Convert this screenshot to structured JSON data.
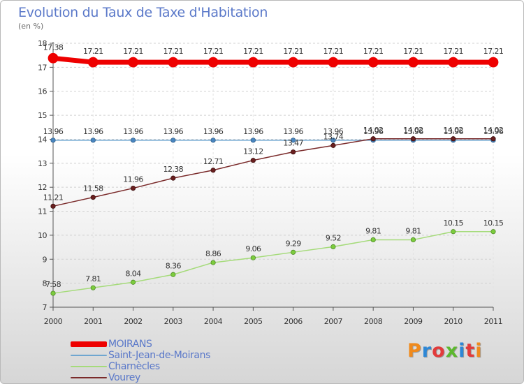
{
  "header": {
    "title": "Evolution du Taux de Taxe d'Habitation",
    "unit": "(en %)"
  },
  "logo": {
    "text": "Proxiti",
    "letter_colors": [
      "#f08a1c",
      "#2d87d6",
      "#e23b3b",
      "#5cb82e",
      "#2d87d6",
      "#e23b3b"
    ]
  },
  "chart_data": {
    "type": "line",
    "x": [
      "2000",
      "2001",
      "2002",
      "2003",
      "2004",
      "2005",
      "2006",
      "2007",
      "2008",
      "2009",
      "2010",
      "2011"
    ],
    "ylim": [
      7,
      18
    ],
    "yticks": [
      7,
      8,
      9,
      10,
      11,
      12,
      13,
      14,
      15,
      16,
      17,
      18
    ],
    "grid": "horizontal dashed",
    "series": [
      {
        "name": "MOIRANS",
        "color": "#ee0000",
        "values": [
          17.38,
          17.21,
          17.21,
          17.21,
          17.21,
          17.21,
          17.21,
          17.21,
          17.21,
          17.21,
          17.21,
          17.21
        ],
        "labels": [
          "17.38",
          "17.21",
          "17.21",
          "17.21",
          "17.21",
          "17.21",
          "17.21",
          "17.21",
          "17.21",
          "17.21",
          "17.21",
          "17.21"
        ]
      },
      {
        "name": "Saint-Jean-de-Moirans",
        "color": "#6fa6d0",
        "values": [
          13.96,
          13.96,
          13.96,
          13.96,
          13.96,
          13.96,
          13.96,
          13.96,
          13.96,
          13.96,
          13.96,
          13.96
        ],
        "labels": [
          "13.96",
          "13.96",
          "13.96",
          "13.96",
          "13.96",
          "13.96",
          "13.96",
          "13.96",
          "13.96",
          "13.96",
          "13.96",
          "13.96"
        ]
      },
      {
        "name": "Charnècles",
        "color": "#a5db7a",
        "values": [
          7.58,
          7.81,
          8.04,
          8.36,
          8.86,
          9.06,
          9.29,
          9.52,
          9.81,
          9.81,
          10.15,
          10.15
        ],
        "labels": [
          "7.58",
          "7.81",
          "8.04",
          "8.36",
          "8.86",
          "9.06",
          "9.29",
          "9.52",
          "9.81",
          "9.81",
          "10.15",
          "10.15"
        ]
      },
      {
        "name": "Vourey",
        "color": "#7a2a2a",
        "values": [
          11.21,
          11.58,
          11.96,
          12.38,
          12.71,
          13.12,
          13.47,
          13.74,
          14.02,
          14.02,
          14.02,
          14.02
        ],
        "labels": [
          "11.21",
          "11.58",
          "11.96",
          "12.38",
          "12.71",
          "13.12",
          "13.47",
          "13.74",
          "14.02",
          "14.02",
          "14.02",
          "14.02"
        ]
      }
    ],
    "legend": {
      "position": "bottom-left",
      "items": [
        "MOIRANS",
        "Saint-Jean-de-Moirans",
        "Charnècles",
        "Vourey"
      ]
    }
  }
}
